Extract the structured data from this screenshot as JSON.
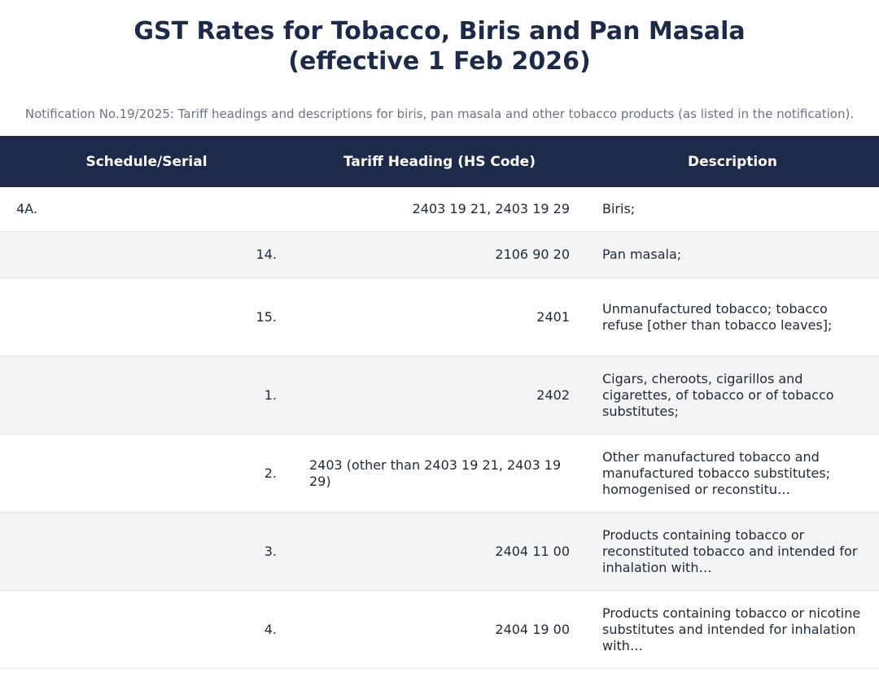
{
  "title_line1": "GST Rates for Tobacco, Biris and Pan Masala",
  "title_line2": "(effective 1 Feb 2026)",
  "subtitle": "Notification No.19/2025: Tariff headings and descriptions for biris, pan masala and other tobacco products (as listed in the notification).",
  "table": {
    "headers": [
      "Schedule/Serial",
      "Tariff Heading (HS Code)",
      "Description"
    ],
    "rows": [
      {
        "serial": "4A.",
        "hs": "2403 19 21, 2403 19 29",
        "desc": "Biris;"
      },
      {
        "serial": "14.",
        "hs": "2106 90 20",
        "desc": "Pan masala;"
      },
      {
        "serial": "15.",
        "hs": "2401",
        "desc": "Unmanufactured tobacco; tobacco refuse [other than tobacco leaves];"
      },
      {
        "serial": "1.",
        "hs": "2402",
        "desc": "Cigars, cheroots, cigarillos and cigarettes, of tobacco or of tobacco substitutes;"
      },
      {
        "serial": "2.",
        "hs": "2403 (other than 2403 19 21, 2403 19 29)",
        "desc": "Other manufactured tobacco and manufactured tobacco substitutes; homogenised or reconstitu…"
      },
      {
        "serial": "3.",
        "hs": "2404 11 00",
        "desc": "Products containing tobacco or reconstituted tobacco and intended for inhalation with…"
      },
      {
        "serial": "4.",
        "hs": "2404 19 00",
        "desc": "Products containing tobacco or nicotine substitutes and intended for inhalation with…"
      }
    ]
  }
}
